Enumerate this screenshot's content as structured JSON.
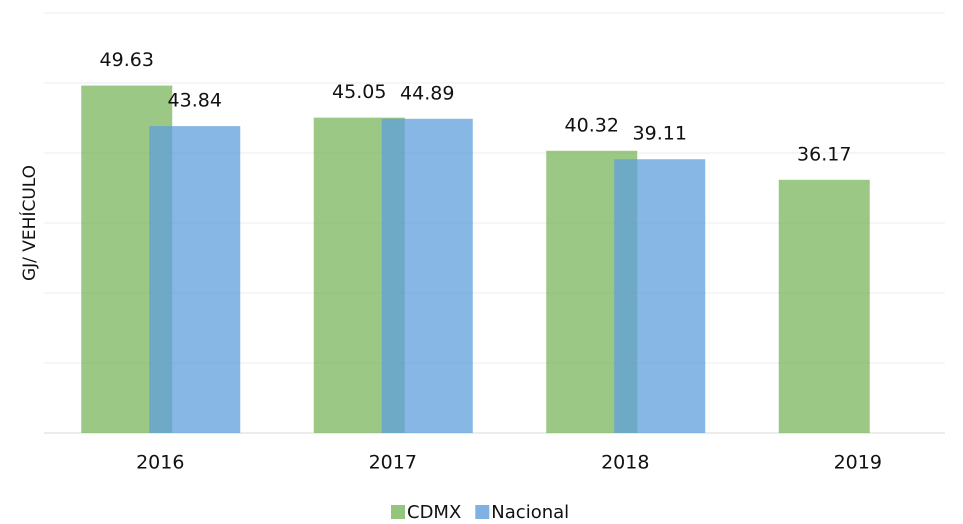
{
  "chart_data": {
    "type": "bar",
    "y_label": "GJ/ VEHÍCULO",
    "categories": [
      "2016",
      "2017",
      "2018",
      "2019"
    ],
    "series": [
      {
        "name": "CDMX",
        "color": "#7ab55c",
        "values": [
          49.63,
          45.05,
          40.32,
          36.17
        ]
      },
      {
        "name": "Nacional",
        "color": "#5f9fdb",
        "values": [
          43.84,
          44.89,
          39.11,
          null
        ]
      }
    ],
    "ylim": [
      0,
      60
    ],
    "yticks": [
      0,
      10,
      20,
      30,
      40,
      50,
      60
    ],
    "grid": true,
    "legend": "bottom"
  }
}
